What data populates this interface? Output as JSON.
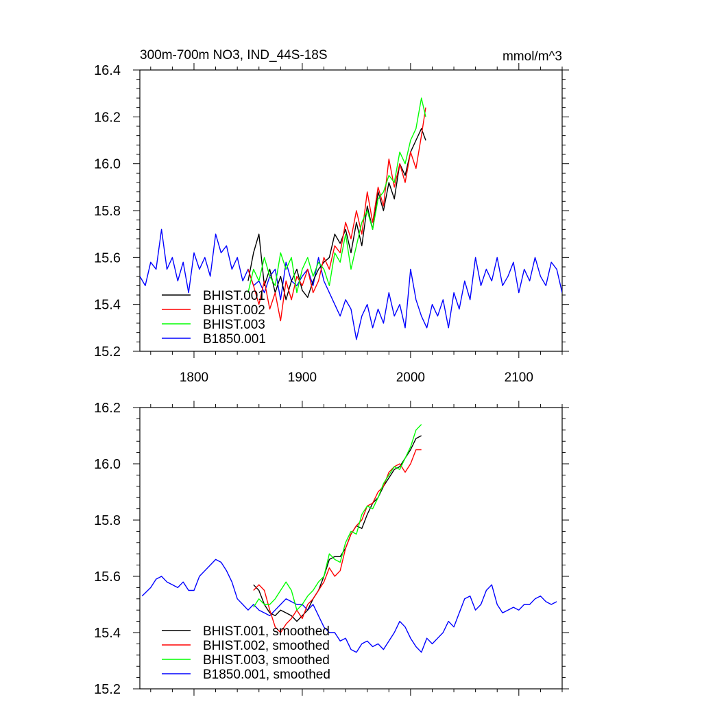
{
  "header": {
    "title": "300m-700m NO3, IND_44S-18S",
    "units": "mmol/m^3"
  },
  "colors": {
    "BHIST.001": "#000000",
    "BHIST.002": "#ff0000",
    "BHIST.003": "#00ff00",
    "B1850.001": "#0000ff"
  },
  "chart_data": [
    {
      "type": "line",
      "panel": "top",
      "title": "300m-700m NO3, IND_44S-18S",
      "units_label": "mmol/m^3",
      "xlim": [
        1750,
        2140
      ],
      "ylim": [
        15.2,
        16.4
      ],
      "xticks": [
        1800,
        1900,
        2000,
        2100
      ],
      "xticklabels": [
        "1800",
        "1900",
        "2000",
        "2100"
      ],
      "yticks": [
        15.2,
        15.4,
        15.6,
        15.8,
        16.0,
        16.2,
        16.4
      ],
      "yticklabels": [
        "15.2",
        "15.4",
        "15.6",
        "15.8",
        "16.0",
        "16.2",
        "16.4"
      ],
      "grid": false,
      "legend_position": "bottom-left",
      "series": [
        {
          "name": "BHIST.001",
          "key": "BHIST.001",
          "x": [
            1850,
            1855,
            1860,
            1865,
            1870,
            1875,
            1880,
            1885,
            1890,
            1895,
            1900,
            1905,
            1910,
            1915,
            1920,
            1925,
            1930,
            1935,
            1940,
            1945,
            1950,
            1955,
            1960,
            1965,
            1970,
            1975,
            1980,
            1985,
            1990,
            1995,
            2000,
            2005,
            2010,
            2014
          ],
          "y": [
            15.5,
            15.62,
            15.7,
            15.48,
            15.55,
            15.45,
            15.52,
            15.42,
            15.5,
            15.55,
            15.46,
            15.43,
            15.5,
            15.55,
            15.58,
            15.6,
            15.7,
            15.66,
            15.72,
            15.62,
            15.75,
            15.65,
            15.82,
            15.72,
            15.88,
            15.8,
            15.92,
            15.85,
            16.0,
            15.95,
            16.05,
            16.1,
            16.15,
            16.1
          ]
        },
        {
          "name": "BHIST.002",
          "key": "BHIST.002",
          "x": [
            1850,
            1855,
            1860,
            1865,
            1870,
            1875,
            1880,
            1885,
            1890,
            1895,
            1900,
            1905,
            1910,
            1915,
            1920,
            1925,
            1930,
            1935,
            1940,
            1945,
            1950,
            1955,
            1960,
            1965,
            1970,
            1975,
            1980,
            1985,
            1990,
            1995,
            2000,
            2005,
            2010,
            2014
          ],
          "y": [
            15.55,
            15.48,
            15.4,
            15.5,
            15.38,
            15.45,
            15.33,
            15.5,
            15.42,
            15.52,
            15.48,
            15.55,
            15.45,
            15.5,
            15.6,
            15.55,
            15.65,
            15.62,
            15.75,
            15.68,
            15.8,
            15.7,
            15.88,
            15.75,
            15.9,
            15.82,
            16.02,
            15.9,
            16.0,
            15.92,
            16.05,
            15.98,
            16.12,
            16.24
          ]
        },
        {
          "name": "BHIST.003",
          "key": "BHIST.003",
          "x": [
            1850,
            1855,
            1860,
            1865,
            1870,
            1875,
            1880,
            1885,
            1890,
            1895,
            1900,
            1905,
            1910,
            1915,
            1920,
            1925,
            1930,
            1935,
            1940,
            1945,
            1950,
            1955,
            1960,
            1965,
            1970,
            1975,
            1980,
            1985,
            1990,
            1995,
            2000,
            2005,
            2010,
            2014
          ],
          "y": [
            15.45,
            15.55,
            15.5,
            15.6,
            15.52,
            15.48,
            15.62,
            15.55,
            15.6,
            15.45,
            15.55,
            15.6,
            15.52,
            15.58,
            15.55,
            15.48,
            15.62,
            15.58,
            15.7,
            15.55,
            15.65,
            15.75,
            15.8,
            15.72,
            15.85,
            15.88,
            15.95,
            15.92,
            16.05,
            16.0,
            16.1,
            16.15,
            16.28,
            16.2
          ]
        },
        {
          "name": "B1850.001",
          "key": "B1850.001",
          "x": [
            1750,
            1755,
            1760,
            1765,
            1770,
            1775,
            1780,
            1785,
            1790,
            1795,
            1800,
            1805,
            1810,
            1815,
            1820,
            1825,
            1830,
            1835,
            1840,
            1845,
            1850,
            1855,
            1860,
            1865,
            1870,
            1875,
            1880,
            1885,
            1890,
            1895,
            1900,
            1905,
            1910,
            1915,
            1920,
            1925,
            1930,
            1935,
            1940,
            1945,
            1950,
            1955,
            1960,
            1965,
            1970,
            1975,
            1980,
            1985,
            1990,
            1995,
            2000,
            2005,
            2010,
            2015,
            2020,
            2025,
            2030,
            2035,
            2040,
            2045,
            2050,
            2055,
            2060,
            2065,
            2070,
            2075,
            2080,
            2085,
            2090,
            2095,
            2100,
            2105,
            2110,
            2115,
            2120,
            2125,
            2130,
            2135,
            2140
          ],
          "y": [
            15.52,
            15.48,
            15.58,
            15.55,
            15.72,
            15.55,
            15.6,
            15.5,
            15.58,
            15.45,
            15.62,
            15.55,
            15.6,
            15.52,
            15.7,
            15.62,
            15.65,
            15.55,
            15.6,
            15.5,
            15.55,
            15.48,
            15.5,
            15.45,
            15.52,
            15.55,
            15.42,
            15.58,
            15.5,
            15.48,
            15.52,
            15.55,
            15.48,
            15.6,
            15.5,
            15.45,
            15.4,
            15.35,
            15.42,
            15.38,
            15.25,
            15.35,
            15.4,
            15.3,
            15.38,
            15.32,
            15.45,
            15.35,
            15.4,
            15.3,
            15.55,
            15.42,
            15.35,
            15.3,
            15.4,
            15.35,
            15.42,
            15.3,
            15.45,
            15.38,
            15.5,
            15.42,
            15.6,
            15.48,
            15.55,
            15.5,
            15.6,
            15.48,
            15.52,
            15.58,
            15.45,
            15.55,
            15.5,
            15.6,
            15.52,
            15.48,
            15.58,
            15.55,
            15.45
          ]
        }
      ],
      "legend": [
        "BHIST.001",
        "BHIST.002",
        "BHIST.003",
        "B1850.001"
      ]
    },
    {
      "type": "line",
      "panel": "bottom",
      "xlim": [
        1750,
        2140
      ],
      "ylim": [
        15.2,
        16.2
      ],
      "xticks": [
        1800,
        1900,
        2000,
        2100
      ],
      "yticks": [
        15.2,
        15.4,
        15.6,
        15.8,
        16.0,
        16.2
      ],
      "yticklabels": [
        "15.2",
        "15.4",
        "15.6",
        "15.8",
        "16.0",
        "16.2"
      ],
      "grid": false,
      "legend_position": "bottom-left",
      "series": [
        {
          "name": "BHIST.001, smoothed",
          "key": "BHIST.001",
          "x": [
            1855,
            1860,
            1865,
            1870,
            1875,
            1880,
            1885,
            1890,
            1895,
            1900,
            1905,
            1910,
            1915,
            1920,
            1925,
            1930,
            1935,
            1940,
            1945,
            1950,
            1955,
            1960,
            1965,
            1970,
            1975,
            1980,
            1985,
            1990,
            1995,
            2000,
            2005,
            2010
          ],
          "y": [
            15.57,
            15.55,
            15.5,
            15.47,
            15.46,
            15.48,
            15.47,
            15.46,
            15.44,
            15.46,
            15.48,
            15.52,
            15.55,
            15.6,
            15.66,
            15.67,
            15.67,
            15.7,
            15.75,
            15.78,
            15.77,
            15.82,
            15.86,
            15.88,
            15.92,
            15.95,
            15.98,
            15.99,
            16.02,
            16.05,
            16.09,
            16.1
          ]
        },
        {
          "name": "BHIST.002, smoothed",
          "key": "BHIST.002",
          "x": [
            1855,
            1860,
            1865,
            1870,
            1875,
            1880,
            1885,
            1890,
            1895,
            1900,
            1905,
            1910,
            1915,
            1920,
            1925,
            1930,
            1935,
            1940,
            1945,
            1950,
            1955,
            1960,
            1965,
            1970,
            1975,
            1980,
            1985,
            1990,
            1995,
            2000,
            2005,
            2010
          ],
          "y": [
            15.55,
            15.57,
            15.55,
            15.48,
            15.42,
            15.4,
            15.43,
            15.45,
            15.48,
            15.45,
            15.5,
            15.52,
            15.55,
            15.58,
            15.63,
            15.6,
            15.62,
            15.7,
            15.75,
            15.78,
            15.8,
            15.85,
            15.86,
            15.9,
            15.92,
            15.97,
            15.99,
            16.0,
            15.97,
            16.0,
            16.05,
            16.05
          ]
        },
        {
          "name": "BHIST.003, smoothed",
          "key": "BHIST.003",
          "x": [
            1855,
            1860,
            1865,
            1870,
            1875,
            1880,
            1885,
            1890,
            1895,
            1900,
            1905,
            1910,
            1915,
            1920,
            1925,
            1930,
            1935,
            1940,
            1945,
            1950,
            1955,
            1960,
            1965,
            1970,
            1975,
            1980,
            1985,
            1990,
            1995,
            2000,
            2005,
            2010
          ],
          "y": [
            15.49,
            15.52,
            15.5,
            15.5,
            15.52,
            15.55,
            15.58,
            15.55,
            15.48,
            15.5,
            15.53,
            15.55,
            15.58,
            15.6,
            15.68,
            15.66,
            15.65,
            15.72,
            15.76,
            15.75,
            15.82,
            15.85,
            15.84,
            15.88,
            15.93,
            15.96,
            15.99,
            15.98,
            16.02,
            16.06,
            16.12,
            16.14
          ]
        },
        {
          "name": "B1850.001, smoothed",
          "key": "B1850.001",
          "x": [
            1752,
            1760,
            1765,
            1770,
            1775,
            1780,
            1785,
            1790,
            1795,
            1800,
            1805,
            1810,
            1815,
            1820,
            1825,
            1830,
            1835,
            1840,
            1845,
            1850,
            1855,
            1860,
            1865,
            1870,
            1875,
            1880,
            1885,
            1890,
            1895,
            1900,
            1905,
            1910,
            1915,
            1920,
            1925,
            1930,
            1935,
            1940,
            1945,
            1950,
            1955,
            1960,
            1965,
            1970,
            1975,
            1980,
            1985,
            1990,
            1995,
            2000,
            2005,
            2010,
            2015,
            2020,
            2025,
            2030,
            2035,
            2040,
            2045,
            2050,
            2055,
            2060,
            2065,
            2070,
            2075,
            2080,
            2085,
            2090,
            2095,
            2100,
            2105,
            2110,
            2115,
            2120,
            2125,
            2130,
            2135
          ],
          "y": [
            15.53,
            15.56,
            15.59,
            15.6,
            15.58,
            15.57,
            15.56,
            15.58,
            15.55,
            15.55,
            15.6,
            15.62,
            15.64,
            15.66,
            15.65,
            15.62,
            15.58,
            15.52,
            15.5,
            15.48,
            15.5,
            15.48,
            15.47,
            15.46,
            15.48,
            15.5,
            15.52,
            15.51,
            15.5,
            15.5,
            15.48,
            15.5,
            15.46,
            15.42,
            15.4,
            15.4,
            15.37,
            15.38,
            15.34,
            15.33,
            15.36,
            15.37,
            15.35,
            15.36,
            15.34,
            15.37,
            15.4,
            15.44,
            15.42,
            15.38,
            15.35,
            15.33,
            15.38,
            15.36,
            15.38,
            15.4,
            15.44,
            15.42,
            15.47,
            15.52,
            15.53,
            15.48,
            15.5,
            15.55,
            15.57,
            15.5,
            15.47,
            15.48,
            15.49,
            15.48,
            15.5,
            15.5,
            15.52,
            15.53,
            15.51,
            15.5,
            15.51
          ]
        }
      ],
      "legend": [
        "BHIST.001, smoothed",
        "BHIST.002, smoothed",
        "BHIST.003, smoothed",
        "B1850.001, smoothed"
      ]
    }
  ]
}
